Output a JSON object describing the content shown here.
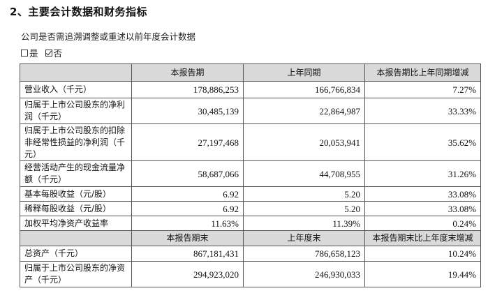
{
  "title": "2、主要会计数据和财务指标",
  "note": "公司是否需追溯调整或重述以前年度会计数据",
  "choices": {
    "yes": "是",
    "no": "否"
  },
  "header1": {
    "c0": "",
    "c1": "本报告期",
    "c2": "上年同期",
    "c3": "本报告期比上年同期增减"
  },
  "rows1": [
    {
      "label": "营业收入（千元）",
      "v1": "178,886,253",
      "v2": "166,766,834",
      "v3": "7.27%"
    },
    {
      "label": "归属于上市公司股东的净利润（千元）",
      "v1": "30,485,139",
      "v2": "22,864,987",
      "v3": "33.33%"
    },
    {
      "label": "归属于上市公司股东的扣除非经常性损益的净利润（千元）",
      "v1": "27,197,468",
      "v2": "20,053,941",
      "v3": "35.62%"
    },
    {
      "label": "经营活动产生的现金流量净额（千元）",
      "v1": "58,687,066",
      "v2": "44,708,955",
      "v3": "31.26%"
    },
    {
      "label": "基本每股收益（元/股）",
      "v1": "6.92",
      "v2": "5.20",
      "v3": "33.08%"
    },
    {
      "label": "稀释每股收益（元/股）",
      "v1": "6.92",
      "v2": "5.20",
      "v3": "33.08%"
    },
    {
      "label": "加权平均净资产收益率",
      "v1": "11.63%",
      "v2": "11.39%",
      "v3": "0.24%"
    }
  ],
  "header2": {
    "c0": "",
    "c1": "本报告期末",
    "c2": "上年度末",
    "c3": "本报告期末比上年度末增减"
  },
  "rows2": [
    {
      "label": "总资产（千元）",
      "v1": "867,181,431",
      "v2": "786,658,123",
      "v3": "10.24%"
    },
    {
      "label": "归属于上市公司股东的净资产（千元）",
      "v1": "294,923,020",
      "v2": "246,930,033",
      "v3": "19.44%"
    }
  ]
}
